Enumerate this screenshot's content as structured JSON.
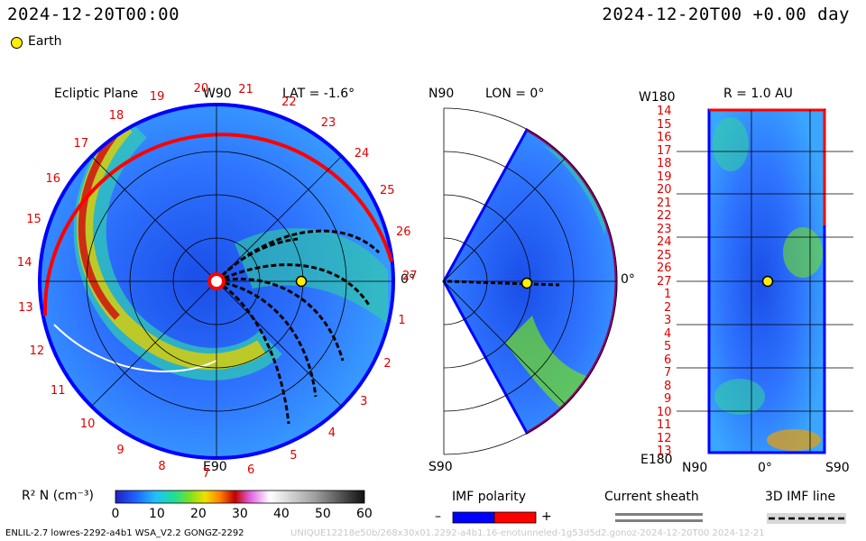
{
  "header": {
    "left_datetime": "2024-12-20T00:00",
    "right_datetime": "2024-12-20T00 +0.00 day",
    "legend_earth": "Earth"
  },
  "colors": {
    "earth_marker": "#ffee00",
    "boundary_red": "#ff0000",
    "boundary_blue": "#0000ff",
    "background_field": "#3a7bff"
  },
  "panels": {
    "ecliptic": {
      "title": "Ecliptic Plane",
      "top_label": "W90",
      "lat_label": "LAT = -1.6°",
      "bottom_label": "E90",
      "right_label": "0°",
      "ticks": [
        "1",
        "2",
        "3",
        "4",
        "5",
        "6",
        "7",
        "8",
        "9",
        "10",
        "11",
        "12",
        "13",
        "14",
        "15",
        "16",
        "17",
        "18",
        "19",
        "20",
        "21",
        "22",
        "23",
        "24",
        "25",
        "26",
        "27"
      ]
    },
    "meridional": {
      "top_label": "N90",
      "lon_label": "LON = 0°",
      "bottom_label": "S90",
      "right_label": "0°"
    },
    "radial": {
      "top_left_label": "W180",
      "r_label": "R = 1.0 AU",
      "bottom_left_label": "E180",
      "x_labels": [
        "N90",
        "0°",
        "S90"
      ],
      "y_labels": [
        "14",
        "15",
        "16",
        "17",
        "18",
        "19",
        "20",
        "21",
        "22",
        "23",
        "24",
        "25",
        "26",
        "27",
        "1",
        "2",
        "3",
        "4",
        "5",
        "6",
        "7",
        "8",
        "9",
        "10",
        "11",
        "12",
        "13"
      ]
    }
  },
  "colorbar": {
    "label": "R² N (cm⁻³)",
    "ticks": [
      "0",
      "10",
      "20",
      "30",
      "40",
      "50",
      "60"
    ],
    "range": [
      0,
      60
    ]
  },
  "legends": {
    "imf_polarity": "IMF polarity",
    "minus": "–",
    "plus": "+",
    "current_sheath": "Current sheath",
    "imf_line_3d": "3D IMF line"
  },
  "footer": {
    "model_info": "ENLIL-2.7 lowres-2292-a4b1 WSA_V2.2 GONGZ-2292",
    "watermark": "UNIQUE12218e50b/268x30x01.2292-a4b1.16-enotunneled-1g53d5d2.gonoz-2024-12-20T00 2024-12-21"
  },
  "chart_data": {
    "type": "heatmap",
    "title": "",
    "quantity": "R² N (cm⁻³)",
    "colorbar_range": [
      0,
      60
    ],
    "earth_position": {
      "lat_deg": -1.6,
      "lon_deg": 0,
      "r_au": 1.0
    },
    "panels": [
      "Ecliptic Plane",
      "LON = 0°",
      "R = 1.0 AU"
    ]
  }
}
